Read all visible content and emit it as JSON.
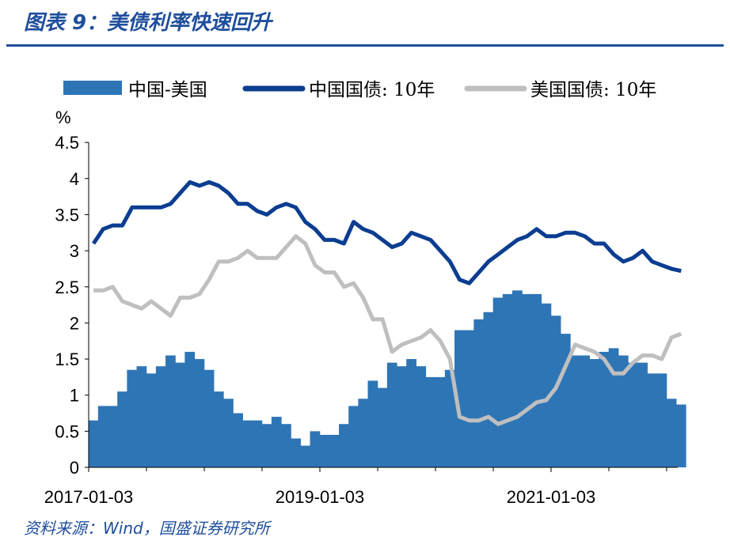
{
  "title": "图表 9：美债利率快速回升",
  "source": "资料来源：Wind，国盛证券研究所",
  "chart_data": {
    "type": "line",
    "ylabel": "%",
    "ylim": [
      0,
      4.5
    ],
    "yticks": [
      "0",
      "0.5",
      "1",
      "1.5",
      "2",
      "2.5",
      "3",
      "3.5",
      "4",
      "4.5"
    ],
    "xtick_labels": [
      "2017-01-03",
      "2019-01-03",
      "2021-01-03"
    ],
    "x_start": "2017-01",
    "x_frequency": "monthly",
    "legend_position": "top",
    "series": [
      {
        "name": "中国-美国",
        "kind": "area",
        "color": "#2e75b6",
        "values": [
          0.65,
          0.85,
          0.85,
          1.05,
          1.35,
          1.4,
          1.3,
          1.4,
          1.55,
          1.45,
          1.6,
          1.5,
          1.35,
          1.05,
          0.95,
          0.75,
          0.65,
          0.65,
          0.6,
          0.7,
          0.6,
          0.4,
          0.3,
          0.5,
          0.45,
          0.45,
          0.6,
          0.85,
          0.95,
          1.2,
          1.1,
          1.45,
          1.4,
          1.5,
          1.4,
          1.25,
          1.25,
          1.35,
          1.9,
          1.9,
          2.05,
          2.15,
          2.35,
          2.4,
          2.45,
          2.4,
          2.4,
          2.27,
          2.1,
          1.85,
          1.55,
          1.55,
          1.5,
          1.6,
          1.65,
          1.55,
          1.45,
          1.45,
          1.3,
          1.3,
          0.95,
          0.87
        ]
      },
      {
        "name": "中国国债: 10年",
        "kind": "line",
        "color": "#0b3d91",
        "values": [
          3.1,
          3.3,
          3.35,
          3.35,
          3.6,
          3.6,
          3.6,
          3.6,
          3.65,
          3.8,
          3.95,
          3.9,
          3.95,
          3.9,
          3.8,
          3.65,
          3.65,
          3.55,
          3.5,
          3.6,
          3.65,
          3.6,
          3.4,
          3.3,
          3.15,
          3.15,
          3.1,
          3.4,
          3.3,
          3.25,
          3.15,
          3.05,
          3.1,
          3.25,
          3.2,
          3.15,
          3.0,
          2.85,
          2.6,
          2.55,
          2.7,
          2.85,
          2.95,
          3.05,
          3.15,
          3.2,
          3.3,
          3.2,
          3.2,
          3.25,
          3.25,
          3.2,
          3.1,
          3.1,
          2.95,
          2.85,
          2.9,
          3.0,
          2.85,
          2.8,
          2.75,
          2.72
        ]
      },
      {
        "name": "美国国债: 10年",
        "kind": "line",
        "color": "#bfbfbf",
        "values": [
          2.45,
          2.45,
          2.5,
          2.3,
          2.25,
          2.2,
          2.3,
          2.2,
          2.1,
          2.35,
          2.35,
          2.4,
          2.6,
          2.85,
          2.85,
          2.9,
          3.0,
          2.9,
          2.9,
          2.9,
          3.05,
          3.2,
          3.1,
          2.8,
          2.7,
          2.7,
          2.5,
          2.55,
          2.35,
          2.05,
          2.05,
          1.6,
          1.7,
          1.75,
          1.8,
          1.9,
          1.75,
          1.5,
          0.7,
          0.65,
          0.65,
          0.7,
          0.6,
          0.65,
          0.7,
          0.8,
          0.9,
          0.93,
          1.1,
          1.4,
          1.7,
          1.65,
          1.6,
          1.5,
          1.3,
          1.3,
          1.45,
          1.55,
          1.55,
          1.5,
          1.8,
          1.85
        ]
      }
    ]
  }
}
